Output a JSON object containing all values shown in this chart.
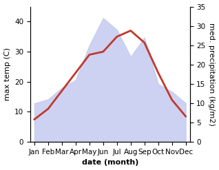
{
  "months": [
    "Jan",
    "Feb",
    "Mar",
    "Apr",
    "May",
    "Jun",
    "Jul",
    "Aug",
    "Sep",
    "Oct",
    "Nov",
    "Dec"
  ],
  "month_positions": [
    0,
    1,
    2,
    3,
    4,
    5,
    6,
    7,
    8,
    9,
    10,
    11
  ],
  "temperature": [
    7.5,
    11.0,
    17.0,
    23.0,
    29.0,
    30.0,
    35.0,
    37.0,
    33.0,
    23.0,
    14.0,
    8.5
  ],
  "precipitation": [
    10.0,
    11.0,
    14.0,
    16.0,
    25.0,
    32.0,
    29.0,
    22.0,
    27.0,
    15.0,
    13.0,
    10.0
  ],
  "temp_color": "#c0392b",
  "precip_fill_color": "#c5caf0",
  "precip_fill_alpha": 0.85,
  "temp_linewidth": 2.0,
  "xlabel": "date (month)",
  "ylabel_left": "max temp (C)",
  "ylabel_right": "med. precipitation (kg/m2)",
  "ylim_left": [
    0,
    45
  ],
  "ylim_right": [
    0,
    35
  ],
  "yticks_left": [
    0,
    10,
    20,
    30,
    40
  ],
  "yticks_right": [
    0,
    5,
    10,
    15,
    20,
    25,
    30,
    35
  ],
  "background_color": "#ffffff",
  "xlabel_fontsize": 8,
  "ylabel_fontsize": 8,
  "tick_fontsize": 7.5
}
